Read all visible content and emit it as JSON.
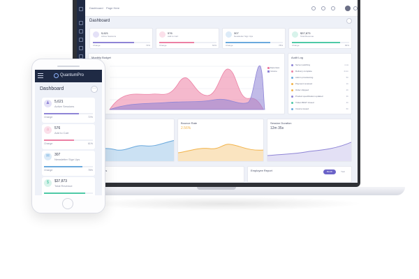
{
  "colors": {
    "purple": "#8e84d6",
    "pink": "#ec80a4",
    "blue": "#6aa9dd",
    "green": "#4ec9a6",
    "navy": "#1f2a44",
    "orange": "#f2b34a"
  },
  "laptop": {
    "menu": [
      "Dashboard",
      "Page Here"
    ],
    "page_title": "Dashboard",
    "stats": [
      {
        "icon": "users-icon",
        "value": "5,621",
        "label": "Active Sessions",
        "foot_left": "Change",
        "foot_right": "72%",
        "progress": 0.72,
        "color": "#8e84d6",
        "bg": "#e4e1f7"
      },
      {
        "icon": "cart-icon",
        "value": "576",
        "label": "Add to Cart",
        "foot_left": "Change",
        "foot_right": "61%",
        "progress": 0.61,
        "color": "#ec80a4",
        "bg": "#fbe0ea"
      },
      {
        "icon": "mail-icon",
        "value": "307",
        "label": "Newsletter Sign Ups",
        "foot_left": "Change",
        "foot_right": "78%",
        "progress": 0.78,
        "color": "#6aa9dd",
        "bg": "#dcebf8"
      },
      {
        "icon": "dollar-icon",
        "value": "$37,873",
        "label": "Total Revenue",
        "foot_left": "Change",
        "foot_right": "84%",
        "progress": 0.84,
        "color": "#4ec9a6",
        "bg": "#d8f3eb"
      }
    ],
    "budget_title": "Monthly Budget",
    "budget_legend": [
      "Expenses",
      "Income"
    ],
    "audit_title": "Audit Log",
    "audit": [
      {
        "text": "Server patching",
        "time": "now",
        "color": "#8e84d6"
      },
      {
        "text": "Delivery complete",
        "time": "2min",
        "color": "#ec80a4"
      },
      {
        "text": "Admin provisioning",
        "time": "5h",
        "color": "#6aa9dd"
      },
      {
        "text": "Payment received",
        "time": "1h",
        "color": "#f2b34a"
      },
      {
        "text": "Order shipped",
        "time": "2h",
        "color": "#f2b34a"
      },
      {
        "text": "Product specification updated",
        "time": "3h",
        "color": "#8e84d6"
      },
      {
        "text": "Ticket #9027 closed",
        "time": "4h",
        "color": "#4ec9a6"
      },
      {
        "text": "Invoice issued",
        "time": "6h",
        "color": "#6aa9dd"
      }
    ],
    "bounce_title": "Bounce Rate",
    "bounce_value": "2.56%",
    "session_title": "Session Duration",
    "session_value": "12m 35s",
    "connections_title": "Connections",
    "report_title": "Employee Report",
    "report_btn1": "Month",
    "report_btn2": "Year"
  },
  "phone": {
    "logo": "QuantumPro",
    "page_title": "Dashboard",
    "more_glyph": "···",
    "stats": [
      {
        "icon": "users-icon",
        "glyph": "♟",
        "value": "5,621",
        "label": "Active Sessions",
        "foot_left": "Change",
        "foot_right": "72%",
        "progress": 0.72,
        "color": "#8e84d6",
        "bg": "#e4e1f7"
      },
      {
        "icon": "cart-icon",
        "glyph": "⌂",
        "value": "576",
        "label": "Add to Cart",
        "foot_left": "Change",
        "foot_right": "61%",
        "progress": 0.61,
        "color": "#ec80a4",
        "bg": "#fbe0ea"
      },
      {
        "icon": "mail-icon",
        "glyph": "✉",
        "value": "307",
        "label": "Newsletter Sign Ups",
        "foot_left": "Change",
        "foot_right": "78%",
        "progress": 0.78,
        "color": "#6aa9dd",
        "bg": "#dcebf8"
      },
      {
        "icon": "dollar-icon",
        "glyph": "$",
        "value": "$37,873",
        "label": "Total Revenue",
        "foot_left": "Change",
        "foot_right": "84%",
        "progress": 0.84,
        "color": "#4ec9a6",
        "bg": "#d8f3eb"
      }
    ]
  }
}
